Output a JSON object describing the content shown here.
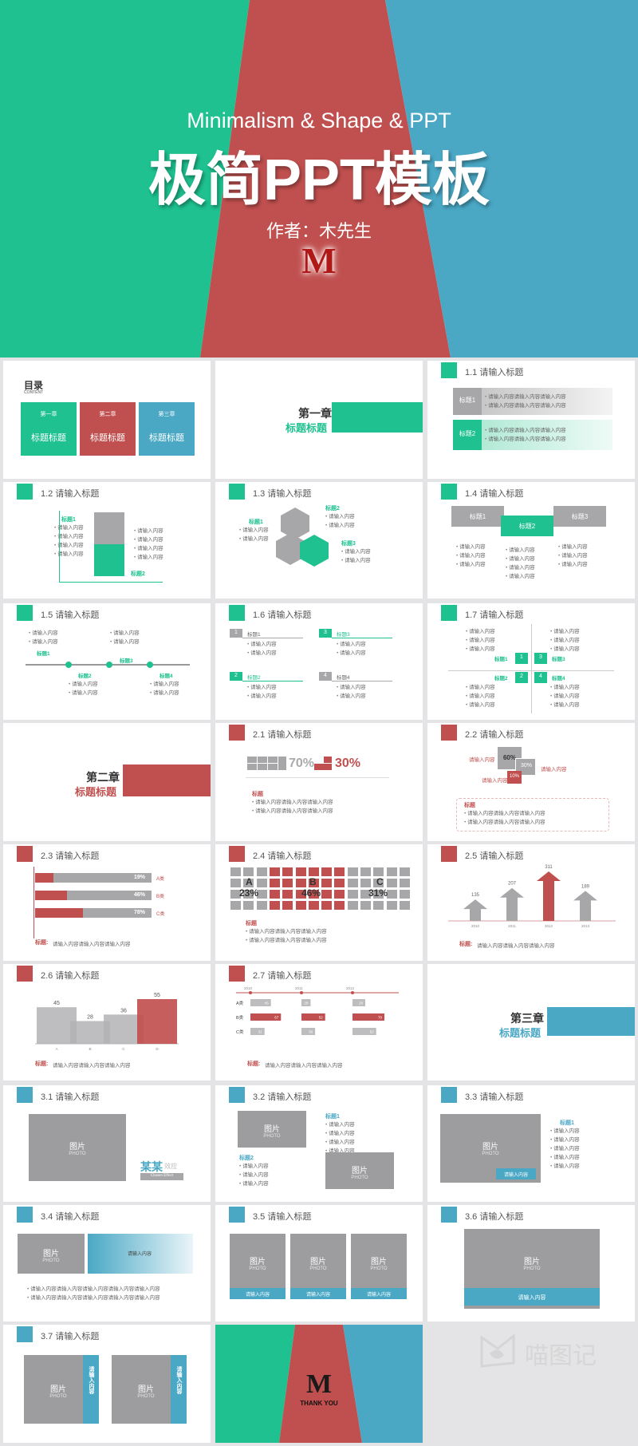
{
  "cover": {
    "subtitle": "Minimalism & Shape & PPT",
    "title": "极简PPT模板",
    "author": "作者：木先生",
    "logo": "M"
  },
  "colors": {
    "green": "#1ec18f",
    "red": "#c0504f",
    "blue": "#4aa8c5",
    "gray": "#a7a7a9"
  },
  "toc": {
    "title": "目录",
    "sub": "CONTENT",
    "cards": [
      {
        "chapter": "第一章",
        "label": "标题标题"
      },
      {
        "chapter": "第二章",
        "label": "标题标题"
      },
      {
        "chapter": "第三章",
        "label": "标题标题"
      }
    ]
  },
  "ch1": {
    "chapter": "第一章",
    "label": "标题标题"
  },
  "ch2": {
    "chapter": "第二章",
    "label": "标题标题"
  },
  "ch3": {
    "chapter": "第三章",
    "label": "标题标题"
  },
  "s11": {
    "h": "1.1 请输入标题",
    "r1": "标题1",
    "r2": "标题2",
    "l1": "请输入内容请输入内容请输入内容",
    "l2": "请输入内容请输入内容请输入内容"
  },
  "s12": {
    "h": "1.2 请输入标题",
    "t1": "标题1",
    "t2": "标题2",
    "item": "请输入内容"
  },
  "s13": {
    "h": "1.3 请输入标题",
    "t1": "标题1",
    "t2": "标题2",
    "t3": "标题3",
    "item": "请输入内容"
  },
  "s14": {
    "h": "1.4 请输入标题",
    "t1": "标题1",
    "t2": "标题2",
    "t3": "标题3",
    "item": "请输入内容"
  },
  "s15": {
    "h": "1.5 请输入标题",
    "t1": "标题1",
    "t2": "标题2",
    "t3": "标题3",
    "t4": "标题4",
    "item": "请输入内容"
  },
  "s16": {
    "h": "1.6 请输入标题",
    "n1": "1",
    "n2": "2",
    "n3": "3",
    "n4": "4",
    "t1": "标题1",
    "t2": "标题2",
    "t3": "标题3",
    "t4": "标题4",
    "item": "请输入内容"
  },
  "s17": {
    "h": "1.7 请输入标题",
    "n1": "1",
    "n2": "2",
    "n3": "3",
    "n4": "4",
    "t1": "标题1",
    "t2": "标题2",
    "t3": "标题3",
    "t4": "标题4",
    "item": "请输入内容"
  },
  "s21": {
    "h": "2.1 请输入标题",
    "p1": "70%",
    "p2": "30%",
    "lbl": "标题",
    "item": "请输入内容请输入内容请输入内容"
  },
  "s22": {
    "h": "2.2 请输入标题",
    "p1": "60%",
    "p2": "30%",
    "p3": "10%",
    "lblA": "请输入内容",
    "lblB": "请输入内容",
    "lblC": "请输入内容",
    "lbl": "标题",
    "item": "请输入内容请输入内容请输入内容"
  },
  "s23": {
    "h": "2.3 请输入标题",
    "bars": [
      {
        "v": "19%",
        "c": "A类",
        "f": 19
      },
      {
        "v": "46%",
        "c": "B类",
        "f": 46
      },
      {
        "v": "78%",
        "c": "C类",
        "f": 78
      }
    ],
    "foot_l": "标题:",
    "foot": "请输入内容请输入内容请输入内容"
  },
  "s24": {
    "h": "2.4 请输入标题",
    "a": "A",
    "av": "23%",
    "b": "B",
    "bv": "46%",
    "c": "C",
    "cv": "31%",
    "lbl": "标题",
    "item": "请输入内容请输入内容请输入内容"
  },
  "s25": {
    "h": "2.5 请输入标题",
    "vals": [
      "135",
      "207",
      "311",
      "189"
    ],
    "years": [
      "2010",
      "2011",
      "2012",
      "2013"
    ],
    "foot_l": "标题:",
    "foot": "请输入内容请输入内容请输入内容"
  },
  "s26": {
    "h": "2.6 请输入标题",
    "vals": [
      "45",
      "28",
      "36",
      "55"
    ],
    "cats": [
      "A",
      "B",
      "C",
      "D"
    ],
    "foot_l": "标题:",
    "foot": "请输入内容请输入内容请输入内容"
  },
  "s27": {
    "h": "2.7 请输入标题",
    "years": [
      "2010",
      "2011",
      "2012"
    ],
    "rows": [
      "A类",
      "B类",
      "C类"
    ],
    "a": [
      "45",
      "20",
      "28"
    ],
    "b": [
      "67",
      "52",
      "70"
    ],
    "c": [
      "31",
      "30",
      "52"
    ],
    "foot_l": "标题:",
    "foot": "请输入内容请输入内容请输入内容"
  },
  "s31": {
    "h": "3.1 请输入标题",
    "pic": "图片",
    "photo": "PHOTO",
    "brand": "某某",
    "brand2": "效应",
    "eff": "Chosen Effect"
  },
  "s32": {
    "h": "3.2 请输入标题",
    "pic": "图片",
    "photo": "PHOTO",
    "t1": "标题1",
    "t2": "标题2",
    "item": "请输入内容"
  },
  "s33": {
    "h": "3.3 请输入标题",
    "pic": "图片",
    "photo": "PHOTO",
    "t1": "标题1",
    "item": "请输入内容",
    "cap": "请输入内容"
  },
  "s34": {
    "h": "3.4 请输入标题",
    "pic": "图片",
    "photo": "PHOTO",
    "cap": "请输入内容",
    "item": "请输入内容请输入内容请输入内容请输入内容请输入内容"
  },
  "s35": {
    "h": "3.5 请输入标题",
    "pic": "图片",
    "photo": "PHOTO",
    "cap": "请输入内容"
  },
  "s36": {
    "h": "3.6 请输入标题",
    "pic": "图片",
    "photo": "PHOTO",
    "cap": "请输入内容"
  },
  "s37": {
    "h": "3.7 请输入标题",
    "pic": "图片",
    "photo": "PHOTO",
    "cap": "请输入内容"
  },
  "end": {
    "logo": "M",
    "thanks": "THANK YOU"
  },
  "watermark": {
    "text": "喵图记"
  }
}
